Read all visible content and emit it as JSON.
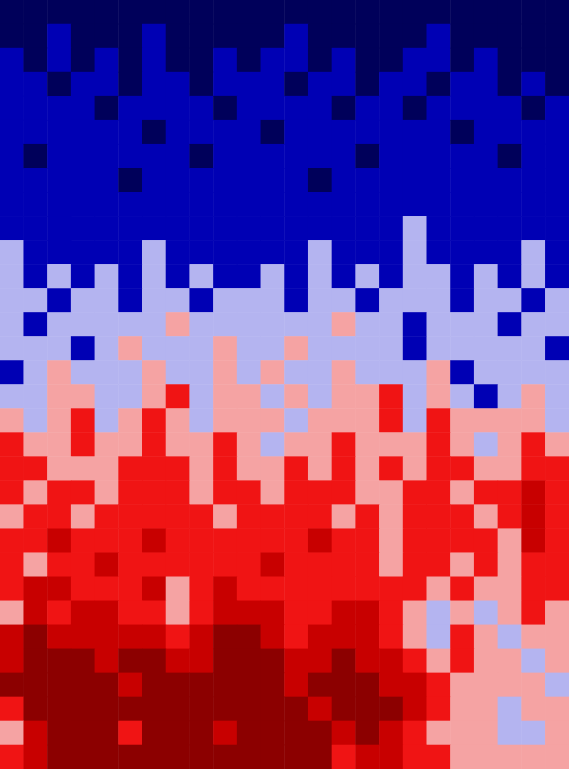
{
  "chart_data": {
    "type": "heatmap",
    "tick_labels": false,
    "grid": false,
    "zlim": [
      0,
      7
    ],
    "levels": [
      0,
      1,
      2,
      3,
      4,
      5,
      6,
      7
    ],
    "colors": [
      "#00005a",
      "#0000b4",
      "#b4b4f0",
      "#f5a3a3",
      "#f01414",
      "#c80000",
      "#8c0000"
    ],
    "cells": [
      [
        0,
        0,
        0,
        0,
        0,
        0,
        0,
        0,
        0,
        0,
        0,
        0,
        0,
        0,
        0,
        0,
        0,
        0,
        0,
        0,
        0,
        0,
        0,
        0
      ],
      [
        0,
        0,
        1,
        0,
        0,
        0,
        1,
        0,
        0,
        0,
        0,
        0,
        1,
        0,
        0,
        0,
        0,
        0,
        1,
        0,
        0,
        0,
        0,
        0
      ],
      [
        1,
        0,
        1,
        0,
        1,
        0,
        1,
        0,
        0,
        1,
        0,
        1,
        1,
        0,
        1,
        0,
        0,
        1,
        1,
        0,
        1,
        0,
        0,
        0
      ],
      [
        1,
        1,
        0,
        1,
        1,
        0,
        1,
        1,
        0,
        1,
        1,
        1,
        0,
        1,
        1,
        0,
        1,
        1,
        0,
        1,
        1,
        0,
        1,
        0
      ],
      [
        1,
        1,
        1,
        1,
        0,
        1,
        1,
        1,
        1,
        0,
        1,
        1,
        1,
        1,
        0,
        1,
        1,
        0,
        1,
        1,
        1,
        1,
        0,
        1
      ],
      [
        1,
        1,
        1,
        1,
        1,
        1,
        0,
        1,
        1,
        1,
        1,
        0,
        1,
        1,
        1,
        1,
        1,
        1,
        1,
        0,
        1,
        1,
        1,
        1
      ],
      [
        1,
        0,
        1,
        1,
        1,
        1,
        1,
        1,
        0,
        1,
        1,
        1,
        1,
        1,
        1,
        0,
        1,
        1,
        1,
        1,
        1,
        0,
        1,
        1
      ],
      [
        1,
        1,
        1,
        1,
        1,
        0,
        1,
        1,
        1,
        1,
        1,
        1,
        1,
        0,
        1,
        1,
        1,
        1,
        1,
        1,
        1,
        1,
        1,
        1
      ],
      [
        1,
        1,
        1,
        1,
        1,
        1,
        1,
        1,
        1,
        1,
        1,
        1,
        1,
        1,
        1,
        1,
        1,
        1,
        1,
        1,
        1,
        1,
        1,
        1
      ],
      [
        1,
        1,
        1,
        1,
        1,
        1,
        1,
        1,
        1,
        1,
        1,
        1,
        1,
        1,
        1,
        1,
        1,
        2,
        1,
        1,
        1,
        1,
        1,
        1
      ],
      [
        2,
        1,
        1,
        1,
        1,
        1,
        2,
        1,
        1,
        1,
        1,
        1,
        1,
        2,
        1,
        1,
        1,
        2,
        1,
        1,
        1,
        1,
        2,
        1
      ],
      [
        2,
        1,
        2,
        1,
        2,
        1,
        2,
        1,
        2,
        1,
        1,
        2,
        1,
        2,
        1,
        2,
        1,
        2,
        2,
        1,
        2,
        1,
        2,
        1
      ],
      [
        2,
        2,
        1,
        2,
        2,
        1,
        2,
        2,
        1,
        2,
        2,
        2,
        1,
        2,
        2,
        1,
        2,
        2,
        2,
        1,
        2,
        2,
        1,
        2
      ],
      [
        2,
        1,
        2,
        2,
        2,
        2,
        2,
        3,
        2,
        2,
        2,
        2,
        2,
        2,
        3,
        2,
        2,
        1,
        2,
        2,
        2,
        1,
        2,
        2
      ],
      [
        2,
        2,
        2,
        1,
        2,
        3,
        2,
        2,
        2,
        3,
        2,
        2,
        3,
        2,
        2,
        2,
        2,
        1,
        2,
        2,
        2,
        2,
        2,
        1
      ],
      [
        1,
        2,
        3,
        2,
        2,
        2,
        3,
        2,
        2,
        3,
        2,
        3,
        2,
        2,
        3,
        2,
        2,
        2,
        3,
        1,
        2,
        2,
        2,
        2
      ],
      [
        2,
        2,
        3,
        3,
        2,
        2,
        3,
        4,
        2,
        3,
        3,
        2,
        3,
        2,
        3,
        3,
        4,
        2,
        3,
        2,
        1,
        2,
        3,
        2
      ],
      [
        3,
        2,
        3,
        4,
        2,
        3,
        4,
        3,
        2,
        3,
        3,
        3,
        2,
        3,
        3,
        3,
        4,
        2,
        4,
        3,
        3,
        3,
        3,
        2
      ],
      [
        4,
        3,
        3,
        4,
        3,
        3,
        4,
        3,
        3,
        4,
        3,
        2,
        3,
        3,
        4,
        3,
        3,
        3,
        4,
        3,
        2,
        3,
        4,
        3
      ],
      [
        4,
        4,
        3,
        3,
        3,
        4,
        4,
        4,
        3,
        4,
        3,
        3,
        4,
        3,
        4,
        3,
        4,
        3,
        4,
        4,
        3,
        3,
        4,
        4
      ],
      [
        4,
        3,
        4,
        4,
        3,
        4,
        4,
        4,
        3,
        4,
        4,
        3,
        4,
        4,
        4,
        3,
        3,
        4,
        4,
        3,
        4,
        4,
        5,
        4
      ],
      [
        3,
        4,
        4,
        3,
        4,
        4,
        4,
        4,
        4,
        3,
        4,
        4,
        4,
        4,
        3,
        4,
        3,
        4,
        4,
        4,
        3,
        4,
        5,
        4
      ],
      [
        4,
        4,
        5,
        4,
        4,
        4,
        5,
        4,
        4,
        4,
        4,
        4,
        4,
        5,
        4,
        4,
        3,
        4,
        4,
        4,
        4,
        3,
        5,
        4
      ],
      [
        4,
        3,
        4,
        4,
        5,
        4,
        4,
        4,
        4,
        4,
        4,
        5,
        4,
        4,
        4,
        4,
        3,
        4,
        4,
        3,
        4,
        3,
        4,
        4
      ],
      [
        4,
        5,
        5,
        4,
        4,
        4,
        5,
        3,
        4,
        5,
        4,
        4,
        4,
        4,
        4,
        4,
        4,
        4,
        3,
        4,
        3,
        3,
        4,
        4
      ],
      [
        3,
        5,
        4,
        5,
        5,
        4,
        4,
        3,
        4,
        5,
        5,
        5,
        4,
        4,
        5,
        5,
        4,
        3,
        2,
        3,
        2,
        3,
        4,
        3
      ],
      [
        5,
        6,
        5,
        5,
        5,
        5,
        5,
        4,
        5,
        6,
        6,
        5,
        4,
        5,
        5,
        5,
        4,
        3,
        2,
        4,
        3,
        2,
        3,
        3
      ],
      [
        5,
        6,
        6,
        6,
        5,
        6,
        6,
        5,
        5,
        6,
        6,
        6,
        5,
        5,
        6,
        5,
        5,
        4,
        3,
        4,
        3,
        3,
        2,
        3
      ],
      [
        6,
        6,
        6,
        6,
        6,
        5,
        6,
        6,
        6,
        6,
        6,
        6,
        5,
        6,
        6,
        6,
        5,
        5,
        4,
        3,
        3,
        3,
        3,
        2
      ],
      [
        4,
        6,
        6,
        6,
        6,
        6,
        6,
        6,
        6,
        6,
        6,
        6,
        6,
        5,
        6,
        6,
        6,
        5,
        4,
        3,
        3,
        2,
        3,
        3
      ],
      [
        3,
        5,
        6,
        6,
        6,
        4,
        6,
        6,
        6,
        5,
        6,
        6,
        6,
        6,
        5,
        6,
        5,
        4,
        3,
        3,
        3,
        2,
        2,
        3
      ],
      [
        4,
        5,
        6,
        6,
        6,
        6,
        6,
        6,
        6,
        6,
        6,
        6,
        6,
        6,
        4,
        5,
        5,
        4,
        4,
        3,
        3,
        3,
        3,
        3
      ]
    ]
  }
}
